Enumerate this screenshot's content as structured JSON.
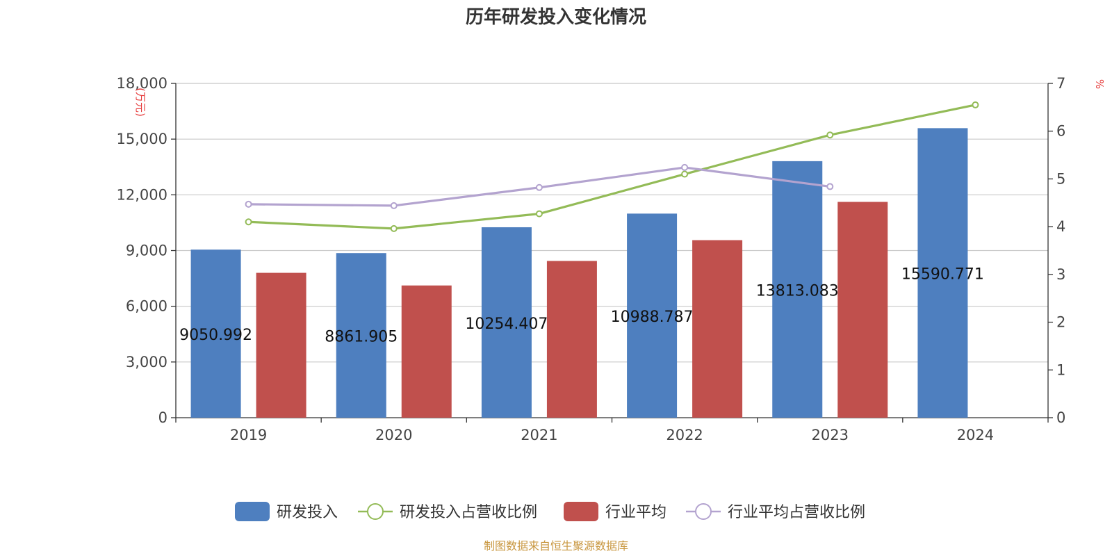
{
  "chart_data": {
    "type": "bar",
    "title": "历年研发投入变化情况",
    "categories": [
      "2019",
      "2020",
      "2021",
      "2022",
      "2023",
      "2024"
    ],
    "y_left": {
      "unit_label": "(万元)",
      "ylim": [
        0,
        18000
      ],
      "ticks": [
        0,
        3000,
        6000,
        9000,
        12000,
        15000,
        18000
      ],
      "tick_labels": [
        "0",
        "3,000",
        "6,000",
        "9,000",
        "12,000",
        "15,000",
        "18,000"
      ]
    },
    "y_right": {
      "unit_label": "%",
      "ylim": [
        0,
        7
      ],
      "ticks": [
        0,
        1,
        2,
        3,
        4,
        5,
        6,
        7
      ],
      "tick_labels": [
        "0",
        "1",
        "2",
        "3",
        "4",
        "5",
        "6",
        "7"
      ]
    },
    "series": [
      {
        "name": "研发投入",
        "type": "bar",
        "axis": "left",
        "color": "#4e7fbf",
        "values": [
          9050.992,
          8861.905,
          10254.407,
          10988.787,
          13813.083,
          15590.771
        ],
        "data_labels": [
          "9050.992",
          "8861.905",
          "10254.407",
          "10988.787",
          "13813.083",
          "15590.771"
        ]
      },
      {
        "name": "研发投入占营收比例",
        "type": "line",
        "axis": "right",
        "color": "#93bb57",
        "values": [
          4.1,
          3.96,
          4.27,
          5.1,
          5.92,
          6.55
        ]
      },
      {
        "name": "行业平均",
        "type": "bar",
        "axis": "left",
        "color": "#c0504d",
        "values": [
          7800,
          7120,
          8440,
          9560,
          11620,
          null
        ]
      },
      {
        "name": "行业平均占营收比例",
        "type": "line",
        "axis": "right",
        "color": "#b3a3cf",
        "values": [
          4.47,
          4.44,
          4.82,
          5.24,
          4.84,
          null
        ]
      }
    ],
    "grid": true,
    "legend_position": "bottom-center"
  },
  "source": "制图数据来自恒生聚源数据库"
}
